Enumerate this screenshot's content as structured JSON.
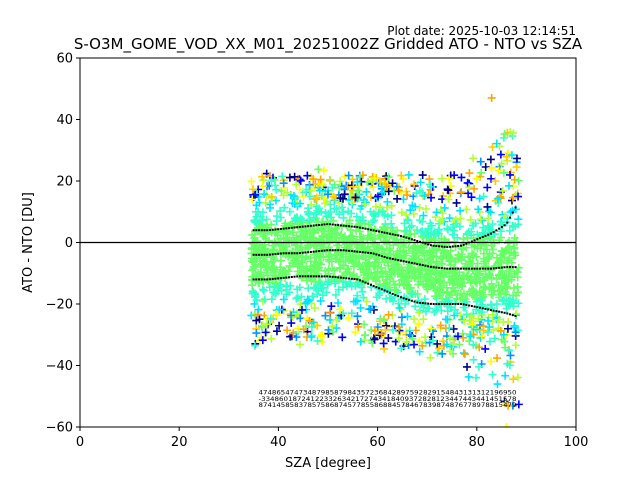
{
  "chart_data": {
    "type": "scatter",
    "title": "S-O3M_GOME_VOD_XX_M01_20251002Z Gridded ATO - NTO vs SZA",
    "plot_date": "Plot date: 2025-10-03 12:14:51",
    "xlabel": "SZA [degree]",
    "ylabel": "ATO - NTO [DU]",
    "xlim": [
      0,
      100
    ],
    "ylim": [
      -60,
      60
    ],
    "xticks": [
      0,
      20,
      40,
      60,
      80,
      100
    ],
    "yticks": [
      -60,
      -40,
      -20,
      0,
      20,
      40,
      60
    ],
    "reference_line_y": 0,
    "marker": "+",
    "colors": {
      "frame": "#000000",
      "scatter_palette": [
        "#00008b",
        "#0000ff",
        "#0096ff",
        "#00e5ff",
        "#33ffcc",
        "#66ff66",
        "#b3ff33",
        "#ffff00",
        "#ffcc00",
        "#ffa500"
      ],
      "mean_line": "#000000",
      "std_lines": "#000000"
    },
    "scatter_extent": {
      "sza_min": 34.5,
      "sza_max": 88.5,
      "max_outlier": [
        83,
        47
      ],
      "min_outlier": [
        86,
        -60
      ]
    },
    "series": [
      {
        "name": "mean",
        "style": "dotted",
        "x": [
          35,
          38,
          41,
          44,
          47,
          50,
          53,
          56,
          59,
          62,
          65,
          68,
          71,
          74,
          77,
          80,
          83,
          86,
          88
        ],
        "y": [
          -4,
          -4,
          -3.5,
          -3.5,
          -3,
          -2.5,
          -2.5,
          -3,
          -3.5,
          -5,
          -6,
          -7,
          -8,
          -8.5,
          -8.5,
          -8.5,
          -8.5,
          -8,
          -8
        ]
      },
      {
        "name": "mean + std",
        "style": "dotted",
        "x": [
          35,
          38,
          41,
          44,
          47,
          50,
          53,
          56,
          59,
          62,
          65,
          68,
          71,
          74,
          77,
          80,
          83,
          86,
          88
        ],
        "y": [
          4,
          4,
          4.5,
          5,
          5.5,
          6,
          5.5,
          5,
          4,
          3,
          2,
          0.5,
          -1,
          -1.5,
          -1,
          1,
          3,
          6,
          12
        ]
      },
      {
        "name": "mean - std",
        "style": "dotted",
        "x": [
          35,
          38,
          41,
          44,
          47,
          50,
          53,
          56,
          59,
          62,
          65,
          68,
          71,
          74,
          77,
          80,
          83,
          86,
          88
        ],
        "y": [
          -12,
          -12,
          -11.5,
          -11,
          -11,
          -11,
          -11.5,
          -12,
          -14,
          -16,
          -18,
          -19.5,
          -20,
          -20,
          -20,
          -21,
          -22,
          -23,
          -24
        ]
      }
    ],
    "bin_annotation": {
      "x_range": [
        36,
        88
      ],
      "rows_y": [
        -49.5,
        -51.5,
        -53.5
      ],
      "rows": [
        "4748654747348798587984357236842897592829154843131312196950",
        "-334860187241223326342172743418409372828123447443441451578",
        "8741458583785758687457785586884578467839874876778978815479"
      ]
    }
  }
}
